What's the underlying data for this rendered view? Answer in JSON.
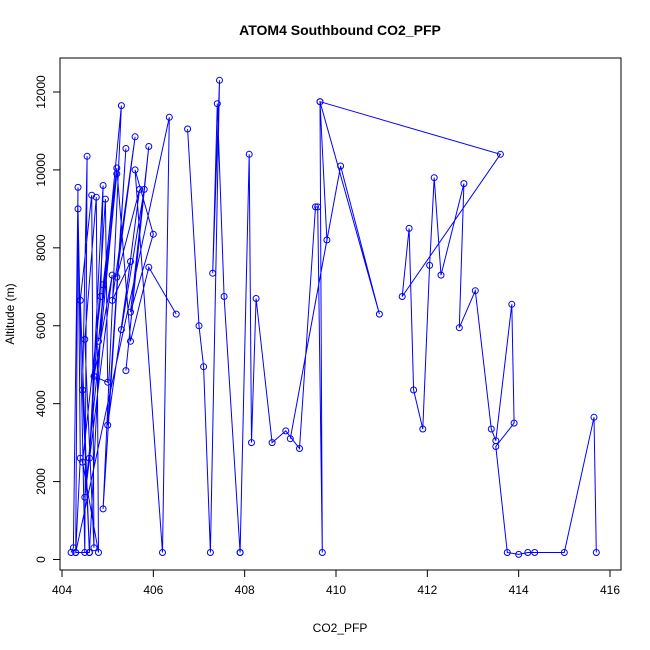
{
  "chart_data": {
    "type": "line",
    "title": "ATOM4 Southbound CO2_PFP",
    "xlabel": "CO2_PFP",
    "ylabel": "Altitude (m)",
    "xlim": [
      404,
      416
    ],
    "ylim": [
      0,
      12500
    ],
    "x_ticks": [
      404,
      406,
      408,
      410,
      412,
      414,
      416
    ],
    "y_ticks": [
      0,
      2000,
      4000,
      6000,
      8000,
      10000,
      12000
    ],
    "grid": false,
    "marker": "open-circle",
    "color": "#0000ff",
    "series": [
      {
        "x": [
          404.2,
          404.25,
          404.35,
          404.3,
          404.4,
          404.35,
          404.5,
          404.55,
          404.45,
          404.6,
          404.4,
          404.65,
          404.7,
          404.5,
          404.75,
          404.8,
          404.45,
          404.85,
          404.9,
          404.6,
          404.95,
          405.0,
          404.7,
          405.1,
          404.5,
          405.2,
          404.8,
          405.3,
          404.9,
          405.4,
          405.0,
          405.5,
          405.1,
          405.6,
          405.2,
          405.7,
          405.3,
          405.8,
          405.4,
          405.9,
          405.5,
          406.0,
          405.6,
          406.2,
          406.35,
          404.3,
          404.6,
          404.9,
          405.2,
          405.5,
          405.9,
          406.5
        ],
        "y": [
          180,
          300,
          9550,
          180,
          2600,
          9000,
          180,
          10350,
          4350,
          180,
          6650,
          9350,
          300,
          5650,
          9300,
          180,
          2500,
          6750,
          9600,
          2600,
          9250,
          4550,
          4700,
          7300,
          1600,
          9900,
          5600,
          11650,
          1300,
          10550,
          3450,
          7650,
          6650,
          10850,
          7250,
          9500,
          5900,
          9500,
          4850,
          10600,
          6350,
          8350,
          10000,
          180,
          11350,
          180,
          180,
          7050,
          10050,
          5600,
          7500,
          6300
        ]
      },
      {
        "x": [
          406.75,
          407.0,
          407.1,
          407.25,
          407.45,
          407.3,
          407.4,
          407.55,
          407.9,
          407.9,
          408.1,
          408.15,
          408.25,
          408.6,
          408.9,
          409.2,
          409.55,
          409.6,
          409.7,
          409.65,
          409.8,
          409.0,
          410.1,
          410.95,
          409.65,
          413.6,
          411.45,
          411.6,
          411.7,
          411.9,
          412.05,
          412.15,
          412.3,
          412.8,
          412.7,
          413.05,
          413.4,
          413.5,
          413.85,
          413.9,
          413.5,
          413.75,
          414.0,
          414.2,
          414.35,
          415.0,
          415.65,
          415.7
        ],
        "y": [
          11050,
          6000,
          4950,
          180,
          12300,
          7350,
          11700,
          6750,
          180,
          180,
          10400,
          3000,
          6700,
          3000,
          3300,
          2850,
          9050,
          9050,
          180,
          11750,
          8200,
          3100,
          10100,
          6300,
          11750,
          10400,
          6750,
          8500,
          4350,
          3350,
          7550,
          9800,
          7300,
          9650,
          5950,
          6900,
          3350,
          3050,
          6550,
          3500,
          2900,
          180,
          130,
          180,
          180,
          180,
          3650,
          180
        ]
      }
    ]
  }
}
